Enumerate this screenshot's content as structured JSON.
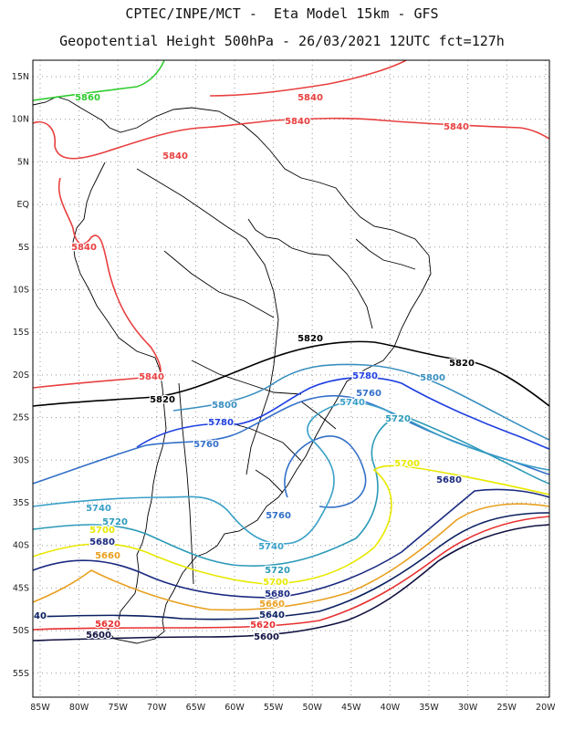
{
  "title_line1": "CPTEC/INPE/MCT -  Eta Model 15km - GFS",
  "title_line2": "Geopotential Height 500hPa - 26/03/2021 12UTC fct=127h",
  "axes": {
    "lat_labels": [
      "15N",
      "10N",
      "5N",
      "EQ",
      "5S",
      "10S",
      "15S",
      "20S",
      "25S",
      "30S",
      "35S",
      "40S",
      "45S",
      "50S",
      "55S"
    ],
    "lon_labels": [
      "85W",
      "80W",
      "75W",
      "70W",
      "65W",
      "60W",
      "55W",
      "50W",
      "45W",
      "40W",
      "35W",
      "30W",
      "25W",
      "20W"
    ]
  },
  "contour_colors": {
    "5860": "#2ecc2e",
    "5840": "#e84040",
    "5820": "#000000",
    "5800": "#3a8fc0",
    "5780": "#1f3fe0",
    "5760": "#3370c8",
    "5740": "#3aa0c8",
    "5720": "#2c9ab8",
    "5700": "#e8e800",
    "5680": "#1a2a80",
    "5660": "#e8a020",
    "5640": "#0a2060",
    "5620": "#e83030",
    "5600": "#101040"
  },
  "contour_labels": [
    {
      "text": "5860",
      "color": "5860"
    },
    {
      "text": "5840",
      "color": "5840"
    },
    {
      "text": "5840",
      "color": "5840"
    },
    {
      "text": "5840",
      "color": "5840"
    },
    {
      "text": "5840",
      "color": "5840"
    },
    {
      "text": "5840",
      "color": "5840"
    },
    {
      "text": "5840",
      "color": "5840"
    },
    {
      "text": "5820",
      "color": "5820"
    },
    {
      "text": "5820",
      "color": "5820"
    },
    {
      "text": "5820",
      "color": "5820"
    },
    {
      "text": "5800",
      "color": "5800"
    },
    {
      "text": "5800",
      "color": "5800"
    },
    {
      "text": "5780",
      "color": "5780"
    },
    {
      "text": "5780",
      "color": "5780"
    },
    {
      "text": "5760",
      "color": "5760"
    },
    {
      "text": "5760",
      "color": "5760"
    },
    {
      "text": "5760",
      "color": "5760"
    },
    {
      "text": "5740",
      "color": "5740"
    },
    {
      "text": "5740",
      "color": "5740"
    },
    {
      "text": "5740",
      "color": "5740"
    },
    {
      "text": "5720",
      "color": "5720"
    },
    {
      "text": "5720",
      "color": "5720"
    },
    {
      "text": "5720",
      "color": "5720"
    },
    {
      "text": "5700",
      "color": "5700"
    },
    {
      "text": "5700",
      "color": "5700"
    },
    {
      "text": "5700",
      "color": "5700"
    },
    {
      "text": "5680",
      "color": "5680"
    },
    {
      "text": "5680",
      "color": "5680"
    },
    {
      "text": "5680",
      "color": "5680"
    },
    {
      "text": "5660",
      "color": "5660"
    },
    {
      "text": "5660",
      "color": "5660"
    },
    {
      "text": "5640",
      "color": "5640"
    },
    {
      "text": "40",
      "color": "5640"
    },
    {
      "text": "5620",
      "color": "5620"
    },
    {
      "text": "5620",
      "color": "5620"
    },
    {
      "text": "5600",
      "color": "5600"
    },
    {
      "text": "5600",
      "color": "5600"
    }
  ]
}
